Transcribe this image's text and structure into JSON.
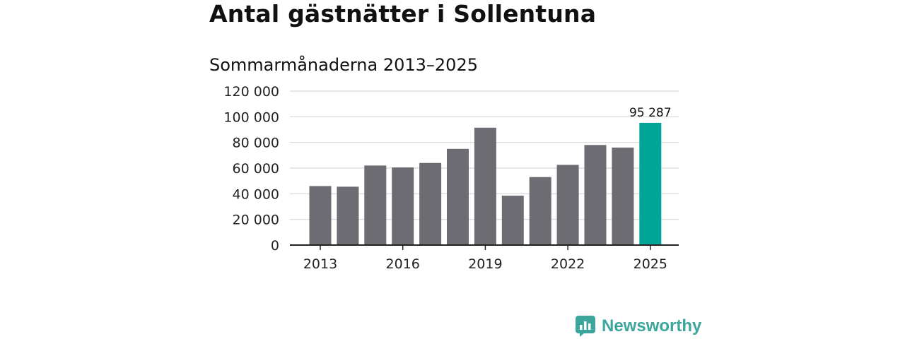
{
  "colors": {
    "bar": "#6d6c72",
    "highlight": "#00a598",
    "grid": "#d8d8d8",
    "axis": "#222222",
    "brand": "#3ca59c"
  },
  "brand": {
    "name": "Newsworthy",
    "icon": "newsworthy-logo-icon"
  },
  "chart_data": {
    "type": "bar",
    "title": "Antal gästnätter i Sollentuna",
    "subtitle": "Sommarmånaderna 2013–2025",
    "categories": [
      "2013",
      "2014",
      "2015",
      "2016",
      "2017",
      "2018",
      "2019",
      "2020",
      "2021",
      "2022",
      "2023",
      "2024",
      "2025"
    ],
    "values": [
      46000,
      45500,
      62000,
      60500,
      64000,
      75000,
      91500,
      38500,
      53000,
      62500,
      78000,
      76000,
      95287
    ],
    "x_tick_labels": [
      "2013",
      "2016",
      "2019",
      "2022",
      "2025"
    ],
    "y_tick_labels": [
      "0",
      "20 000",
      "40 000",
      "60 000",
      "80 000",
      "100 000",
      "120 000"
    ],
    "ylim": [
      0,
      120000
    ],
    "grid": true,
    "highlight_category": "2025",
    "annotation": {
      "category": "2025",
      "text": "95 287"
    }
  }
}
